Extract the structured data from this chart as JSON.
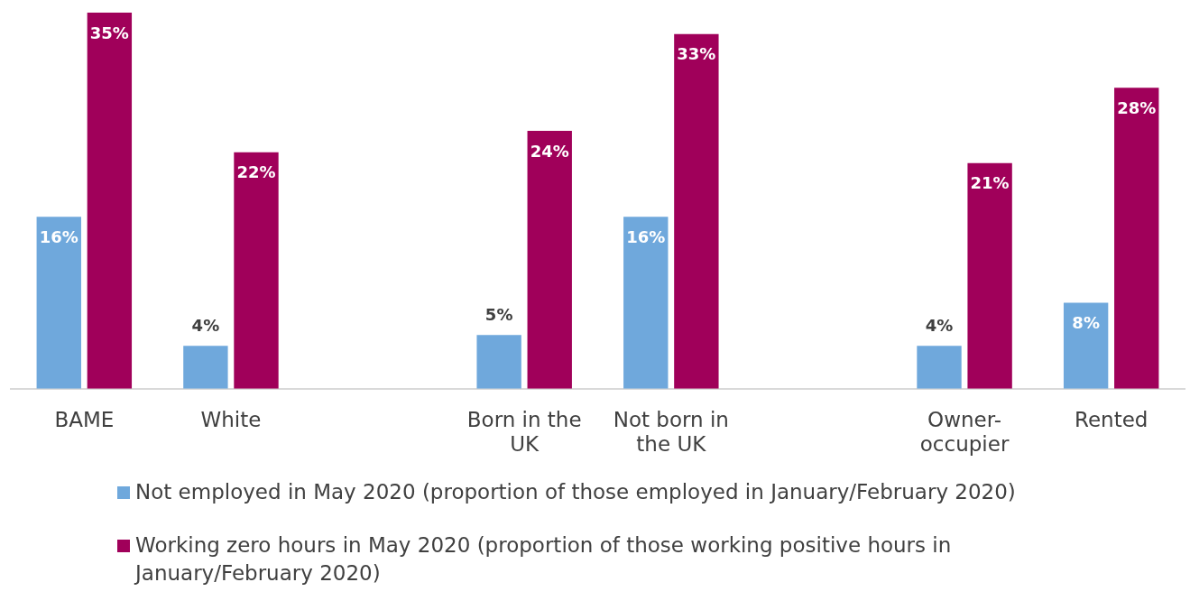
{
  "chart_data": {
    "type": "bar",
    "categories": [
      "BAME",
      "White",
      null,
      "Born in the UK",
      "Not born in the UK",
      null,
      "Owner-occupier",
      "Rented"
    ],
    "series": [
      {
        "name": "Not employed in May 2020 (proportion of those employed in January/February 2020)",
        "color": "#6fa8dc",
        "values": [
          16,
          4,
          null,
          5,
          16,
          null,
          4,
          8
        ],
        "value_labels": [
          "16%",
          "4%",
          null,
          "5%",
          "16%",
          null,
          "4%",
          "8%"
        ]
      },
      {
        "name": "Working zero hours in May 2020 (proportion of those working positive hours in January/February 2020)",
        "color": "#a0005a",
        "values": [
          35,
          22,
          null,
          24,
          33,
          null,
          21,
          28
        ],
        "value_labels": [
          "35%",
          "22%",
          null,
          "24%",
          "33%",
          null,
          "21%",
          "28%"
        ]
      }
    ],
    "legend": "bottom",
    "grid": false
  }
}
